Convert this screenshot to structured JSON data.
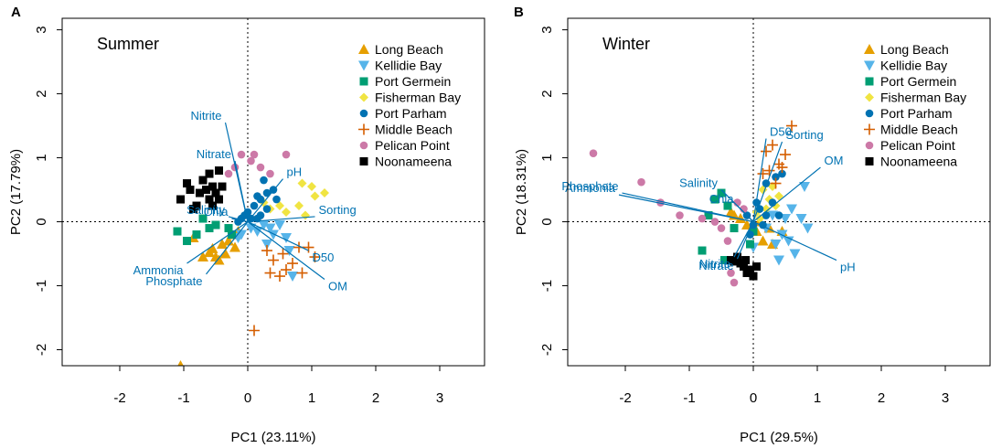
{
  "colors": {
    "Long Beach": "#E69F00",
    "Kellidie Bay": "#56B4E9",
    "Port Germein": "#009E73",
    "Fisherman Bay": "#F0E442",
    "Port Parham": "#0072B2",
    "Middle Beach": "#D55E00",
    "Pelican Point": "#CC79A7",
    "Noonameena": "#000000",
    "vector": "#0072B2"
  },
  "chart_data": [
    {
      "type": "scatter",
      "panel_label": "A",
      "title": "Summer",
      "xlabel": "PC1 (23.11%)",
      "ylabel": "PC2 (17.79%)",
      "xlim": [
        -2.9,
        3.7
      ],
      "ylim": [
        -2.25,
        3.18
      ],
      "xticks": [
        "-2",
        "-1",
        "0",
        "1",
        "2",
        "3"
      ],
      "yticks": [
        "-2",
        "-1",
        "0",
        "1",
        "2",
        "3"
      ],
      "reference_lines": {
        "x": 0,
        "y": 0
      },
      "legend": {
        "position": "top-right",
        "entries": [
          {
            "name": "Long Beach",
            "marker": "triangle-up"
          },
          {
            "name": "Kellidie Bay",
            "marker": "triangle-down"
          },
          {
            "name": "Port Germein",
            "marker": "square"
          },
          {
            "name": "Fisherman Bay",
            "marker": "diamond"
          },
          {
            "name": "Port Parham",
            "marker": "circle"
          },
          {
            "name": "Middle Beach",
            "marker": "plus"
          },
          {
            "name": "Pelican Point",
            "marker": "circle"
          },
          {
            "name": "Noonameena",
            "marker": "square"
          }
        ]
      },
      "vectors": [
        {
          "label": "Nitrite",
          "x": -0.35,
          "y": 1.55
        },
        {
          "label": "Nitrate",
          "x": -0.2,
          "y": 0.95
        },
        {
          "label": "pH",
          "x": 0.55,
          "y": 0.67
        },
        {
          "label": "Sorting",
          "x": 1.05,
          "y": 0.08
        },
        {
          "label": "D50",
          "x": 0.95,
          "y": -0.45
        },
        {
          "label": "OM",
          "x": 1.2,
          "y": -0.9
        },
        {
          "label": "Phosphate",
          "x": -0.65,
          "y": -0.82
        },
        {
          "label": "Ammonia",
          "x": -0.95,
          "y": -0.65
        },
        {
          "label": "Salinity",
          "x": -0.3,
          "y": 0.08
        },
        {
          "label": "Chla",
          "x": -0.25,
          "y": 0.05
        }
      ],
      "series": [
        {
          "name": "Long Beach",
          "points": [
            [
              -0.85,
              -0.25
            ],
            [
              -0.55,
              -0.42
            ],
            [
              -0.5,
              -0.55
            ],
            [
              -0.45,
              -0.6
            ],
            [
              -0.35,
              -0.5
            ],
            [
              -0.3,
              -0.3
            ],
            [
              -0.25,
              -0.2
            ],
            [
              -0.6,
              -0.48
            ],
            [
              -0.4,
              -0.35
            ],
            [
              -0.15,
              -0.15
            ],
            [
              -0.7,
              -0.55
            ],
            [
              -0.2,
              -0.4
            ],
            [
              -1.05,
              -2.25
            ]
          ]
        },
        {
          "name": "Kellidie Bay",
          "points": [
            [
              0.05,
              -0.1
            ],
            [
              0.15,
              -0.15
            ],
            [
              0.3,
              -0.35
            ],
            [
              0.5,
              -0.05
            ],
            [
              0.6,
              -0.25
            ],
            [
              0.65,
              -0.45
            ],
            [
              0.7,
              -0.85
            ],
            [
              0.25,
              -0.05
            ],
            [
              -0.1,
              -0.2
            ],
            [
              -0.15,
              -0.25
            ],
            [
              0.4,
              -0.2
            ],
            [
              0.35,
              -0.1
            ]
          ]
        },
        {
          "name": "Port Germein",
          "points": [
            [
              -1.1,
              -0.15
            ],
            [
              -0.95,
              -0.3
            ],
            [
              -0.7,
              0.05
            ],
            [
              -0.6,
              -0.1
            ],
            [
              -0.5,
              -0.05
            ],
            [
              -0.8,
              -0.2
            ],
            [
              -0.3,
              -0.1
            ],
            [
              -0.25,
              -0.2
            ]
          ]
        },
        {
          "name": "Fisherman Bay",
          "points": [
            [
              0.85,
              0.6
            ],
            [
              1.0,
              0.55
            ],
            [
              1.2,
              0.45
            ],
            [
              1.05,
              0.4
            ],
            [
              0.5,
              0.25
            ],
            [
              0.35,
              0.2
            ],
            [
              0.6,
              0.15
            ],
            [
              0.8,
              0.25
            ],
            [
              0.9,
              0.1
            ],
            [
              0.25,
              0.3
            ]
          ]
        },
        {
          "name": "Port Parham",
          "points": [
            [
              -0.1,
              0.05
            ],
            [
              0.0,
              0.15
            ],
            [
              0.1,
              0.25
            ],
            [
              0.2,
              0.1
            ],
            [
              0.3,
              0.2
            ],
            [
              0.15,
              0.4
            ],
            [
              0.05,
              0.05
            ],
            [
              -0.05,
              0.1
            ],
            [
              0.25,
              0.65
            ],
            [
              0.4,
              0.5
            ],
            [
              0.2,
              0.35
            ],
            [
              0.45,
              0.35
            ],
            [
              -0.15,
              0.0
            ],
            [
              0.3,
              0.45
            ],
            [
              0.15,
              0.05
            ]
          ]
        },
        {
          "name": "Middle Beach",
          "points": [
            [
              0.3,
              -0.45
            ],
            [
              0.4,
              -0.6
            ],
            [
              0.55,
              -0.5
            ],
            [
              0.7,
              -0.65
            ],
            [
              0.8,
              -0.4
            ],
            [
              0.85,
              -0.8
            ],
            [
              1.05,
              -0.55
            ],
            [
              0.35,
              -0.8
            ],
            [
              0.6,
              -0.75
            ],
            [
              0.95,
              -0.4
            ],
            [
              0.5,
              -0.85
            ],
            [
              0.1,
              -1.7
            ]
          ]
        },
        {
          "name": "Pelican Point",
          "points": [
            [
              -0.2,
              0.85
            ],
            [
              -0.1,
              1.05
            ],
            [
              0.05,
              0.95
            ],
            [
              0.2,
              0.85
            ],
            [
              0.35,
              0.75
            ],
            [
              0.6,
              1.05
            ],
            [
              0.1,
              1.05
            ],
            [
              -0.3,
              0.75
            ]
          ]
        },
        {
          "name": "Noonameena",
          "points": [
            [
              -1.05,
              0.35
            ],
            [
              -0.9,
              0.5
            ],
            [
              -0.8,
              0.25
            ],
            [
              -0.7,
              0.65
            ],
            [
              -0.65,
              0.5
            ],
            [
              -0.6,
              0.35
            ],
            [
              -0.55,
              0.55
            ],
            [
              -0.5,
              0.45
            ],
            [
              -0.45,
              0.8
            ],
            [
              -0.4,
              0.55
            ],
            [
              -0.75,
              0.45
            ],
            [
              -0.85,
              0.2
            ],
            [
              -0.6,
              0.75
            ],
            [
              -0.95,
              0.6
            ],
            [
              -0.55,
              0.25
            ],
            [
              -0.45,
              0.35
            ]
          ]
        }
      ]
    },
    {
      "type": "scatter",
      "panel_label": "B",
      "title": "Winter",
      "xlabel": "PC1 (29.5%)",
      "ylabel": "PC2 (18.31%)",
      "xlim": [
        -2.9,
        3.7
      ],
      "ylim": [
        -2.25,
        3.18
      ],
      "xticks": [
        "-2",
        "-1",
        "0",
        "1",
        "2",
        "3"
      ],
      "yticks": [
        "-2",
        "-1",
        "0",
        "1",
        "2",
        "3"
      ],
      "reference_lines": {
        "x": 0,
        "y": 0
      },
      "legend": {
        "position": "top-right",
        "entries": [
          {
            "name": "Long Beach",
            "marker": "triangle-up"
          },
          {
            "name": "Kellidie Bay",
            "marker": "triangle-down"
          },
          {
            "name": "Port Germein",
            "marker": "square"
          },
          {
            "name": "Fisherman Bay",
            "marker": "diamond"
          },
          {
            "name": "Port Parham",
            "marker": "circle"
          },
          {
            "name": "Middle Beach",
            "marker": "plus"
          },
          {
            "name": "Pelican Point",
            "marker": "circle"
          },
          {
            "name": "Noonameena",
            "marker": "square"
          }
        ]
      },
      "vectors": [
        {
          "label": "D50",
          "x": 0.2,
          "y": 1.3
        },
        {
          "label": "Sorting",
          "x": 0.45,
          "y": 1.25
        },
        {
          "label": "OM",
          "x": 1.05,
          "y": 0.85
        },
        {
          "label": "pH",
          "x": 1.3,
          "y": -0.6
        },
        {
          "label": "Phosphate",
          "x": -2.05,
          "y": 0.45
        },
        {
          "label": "Ammonia",
          "x": -2.1,
          "y": 0.42
        },
        {
          "label": "Salinity",
          "x": -0.5,
          "y": 0.5
        },
        {
          "label": "Chla",
          "x": -0.25,
          "y": 0.25
        },
        {
          "label": "Nitrite",
          "x": -0.3,
          "y": -0.55
        },
        {
          "label": "Nitrate",
          "x": -0.25,
          "y": -0.58
        }
      ],
      "series": [
        {
          "name": "Long Beach",
          "points": [
            [
              -0.3,
              0.1
            ],
            [
              -0.2,
              0.05
            ],
            [
              -0.1,
              -0.05
            ],
            [
              0.05,
              -0.15
            ],
            [
              0.15,
              -0.3
            ],
            [
              0.3,
              -0.35
            ],
            [
              -0.35,
              0.15
            ],
            [
              0.25,
              -0.1
            ],
            [
              0.1,
              0.0
            ],
            [
              0.45,
              -0.15
            ]
          ]
        },
        {
          "name": "Kellidie Bay",
          "points": [
            [
              0.45,
              -0.2
            ],
            [
              0.55,
              -0.3
            ],
            [
              0.6,
              0.2
            ],
            [
              0.75,
              0.05
            ],
            [
              0.8,
              0.55
            ],
            [
              0.65,
              -0.5
            ],
            [
              0.4,
              -0.6
            ],
            [
              0.5,
              0.05
            ],
            [
              0.3,
              0.1
            ],
            [
              0.2,
              -0.1
            ],
            [
              0.0,
              -0.4
            ],
            [
              0.35,
              -0.35
            ],
            [
              0.85,
              -0.1
            ]
          ]
        },
        {
          "name": "Port Germein",
          "points": [
            [
              -0.8,
              -0.45
            ],
            [
              -0.7,
              0.1
            ],
            [
              -0.6,
              0.35
            ],
            [
              -0.5,
              0.45
            ],
            [
              -0.4,
              0.25
            ],
            [
              -0.3,
              -0.1
            ],
            [
              -0.05,
              -0.35
            ],
            [
              -0.45,
              -0.6
            ],
            [
              0.0,
              -0.15
            ]
          ]
        },
        {
          "name": "Fisherman Bay",
          "points": [
            [
              0.15,
              0.5
            ],
            [
              0.25,
              0.35
            ],
            [
              0.3,
              0.55
            ],
            [
              0.2,
              0.2
            ],
            [
              0.05,
              0.15
            ],
            [
              0.35,
              0.25
            ],
            [
              0.1,
              0.05
            ],
            [
              0.4,
              0.4
            ]
          ]
        },
        {
          "name": "Port Parham",
          "points": [
            [
              -0.1,
              0.1
            ],
            [
              0.0,
              -0.05
            ],
            [
              0.1,
              0.2
            ],
            [
              0.2,
              0.1
            ],
            [
              0.3,
              0.3
            ],
            [
              0.4,
              0.1
            ],
            [
              0.35,
              0.7
            ],
            [
              0.45,
              0.75
            ],
            [
              0.2,
              0.6
            ],
            [
              0.05,
              0.3
            ],
            [
              -0.05,
              -0.2
            ],
            [
              0.15,
              -0.05
            ]
          ]
        },
        {
          "name": "Middle Beach",
          "points": [
            [
              0.2,
              1.1
            ],
            [
              0.3,
              1.2
            ],
            [
              0.4,
              0.9
            ],
            [
              0.25,
              0.8
            ],
            [
              0.35,
              0.6
            ],
            [
              0.5,
              1.05
            ],
            [
              0.6,
              1.5
            ],
            [
              0.45,
              0.85
            ],
            [
              0.15,
              0.75
            ]
          ]
        },
        {
          "name": "Pelican Point",
          "points": [
            [
              -2.5,
              1.07
            ],
            [
              -1.75,
              0.62
            ],
            [
              -1.15,
              0.1
            ],
            [
              -0.8,
              0.05
            ],
            [
              -0.6,
              0.0
            ],
            [
              -0.5,
              -0.1
            ],
            [
              -0.4,
              -0.3
            ],
            [
              -0.35,
              -0.8
            ],
            [
              -0.3,
              -0.95
            ],
            [
              -0.2,
              -0.6
            ],
            [
              -0.15,
              0.2
            ],
            [
              -0.25,
              0.3
            ],
            [
              -1.45,
              0.3
            ]
          ]
        },
        {
          "name": "Noonameena",
          "points": [
            [
              -0.35,
              -0.6
            ],
            [
              -0.25,
              -0.55
            ],
            [
              -0.15,
              -0.7
            ],
            [
              -0.1,
              -0.8
            ],
            [
              0.0,
              -0.85
            ],
            [
              -0.05,
              -0.75
            ],
            [
              -0.2,
              -0.65
            ],
            [
              -0.12,
              -0.6
            ],
            [
              0.05,
              -0.7
            ],
            [
              -0.3,
              -0.62
            ]
          ]
        }
      ]
    }
  ]
}
